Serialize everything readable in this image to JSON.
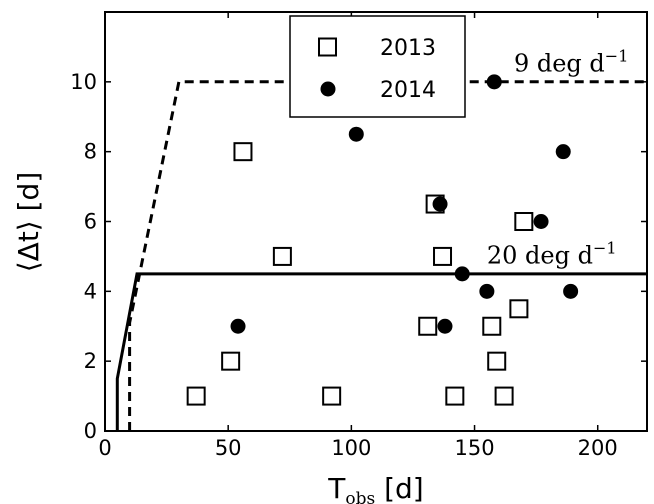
{
  "chart_data": {
    "type": "scatter",
    "xlabel": "T",
    "xlabel_sub": "obs",
    "xlabel_unit": "[d]",
    "ylabel": "⟨Δt⟩ [d]",
    "xlim": [
      0,
      220
    ],
    "ylim": [
      0,
      12
    ],
    "xticks": [
      0,
      50,
      100,
      150,
      200
    ],
    "yticks": [
      0,
      2,
      4,
      6,
      8,
      10
    ],
    "grid": false,
    "legend_position": "top-center",
    "series": [
      {
        "name": "2013",
        "marker": "open-square",
        "points": [
          [
            37,
            1
          ],
          [
            51,
            2
          ],
          [
            56,
            8
          ],
          [
            72,
            5
          ],
          [
            92,
            1
          ],
          [
            131,
            3
          ],
          [
            134,
            6.5
          ],
          [
            137,
            5
          ],
          [
            142,
            1
          ],
          [
            157,
            3
          ],
          [
            159,
            2
          ],
          [
            162,
            1
          ],
          [
            168,
            3.5
          ],
          [
            170,
            6
          ]
        ]
      },
      {
        "name": "2014",
        "marker": "filled-circle",
        "points": [
          [
            54,
            3
          ],
          [
            102,
            8.5
          ],
          [
            136,
            6.5
          ],
          [
            138,
            3
          ],
          [
            145,
            4.5
          ],
          [
            155,
            4
          ],
          [
            158,
            10
          ],
          [
            177,
            6
          ],
          [
            186,
            8
          ],
          [
            189,
            4
          ]
        ]
      }
    ],
    "lines": [
      {
        "name": "9 deg d^-1",
        "style": "dashed",
        "points": [
          [
            10,
            0
          ],
          [
            10,
            3.1
          ],
          [
            30,
            10
          ],
          [
            220,
            10
          ]
        ]
      },
      {
        "name": "20 deg d^-1",
        "style": "solid",
        "points": [
          [
            5,
            0
          ],
          [
            5,
            1.5
          ],
          [
            13,
            4.5
          ],
          [
            220,
            4.5
          ]
        ]
      }
    ],
    "annotations": [
      {
        "text_value": "9",
        "text_unit": "deg d",
        "text_exp": "−1",
        "x": 166,
        "y": 10.3
      },
      {
        "text_value": "20",
        "text_unit": "deg d",
        "text_exp": "−1",
        "x": 155,
        "y": 4.8
      }
    ]
  }
}
